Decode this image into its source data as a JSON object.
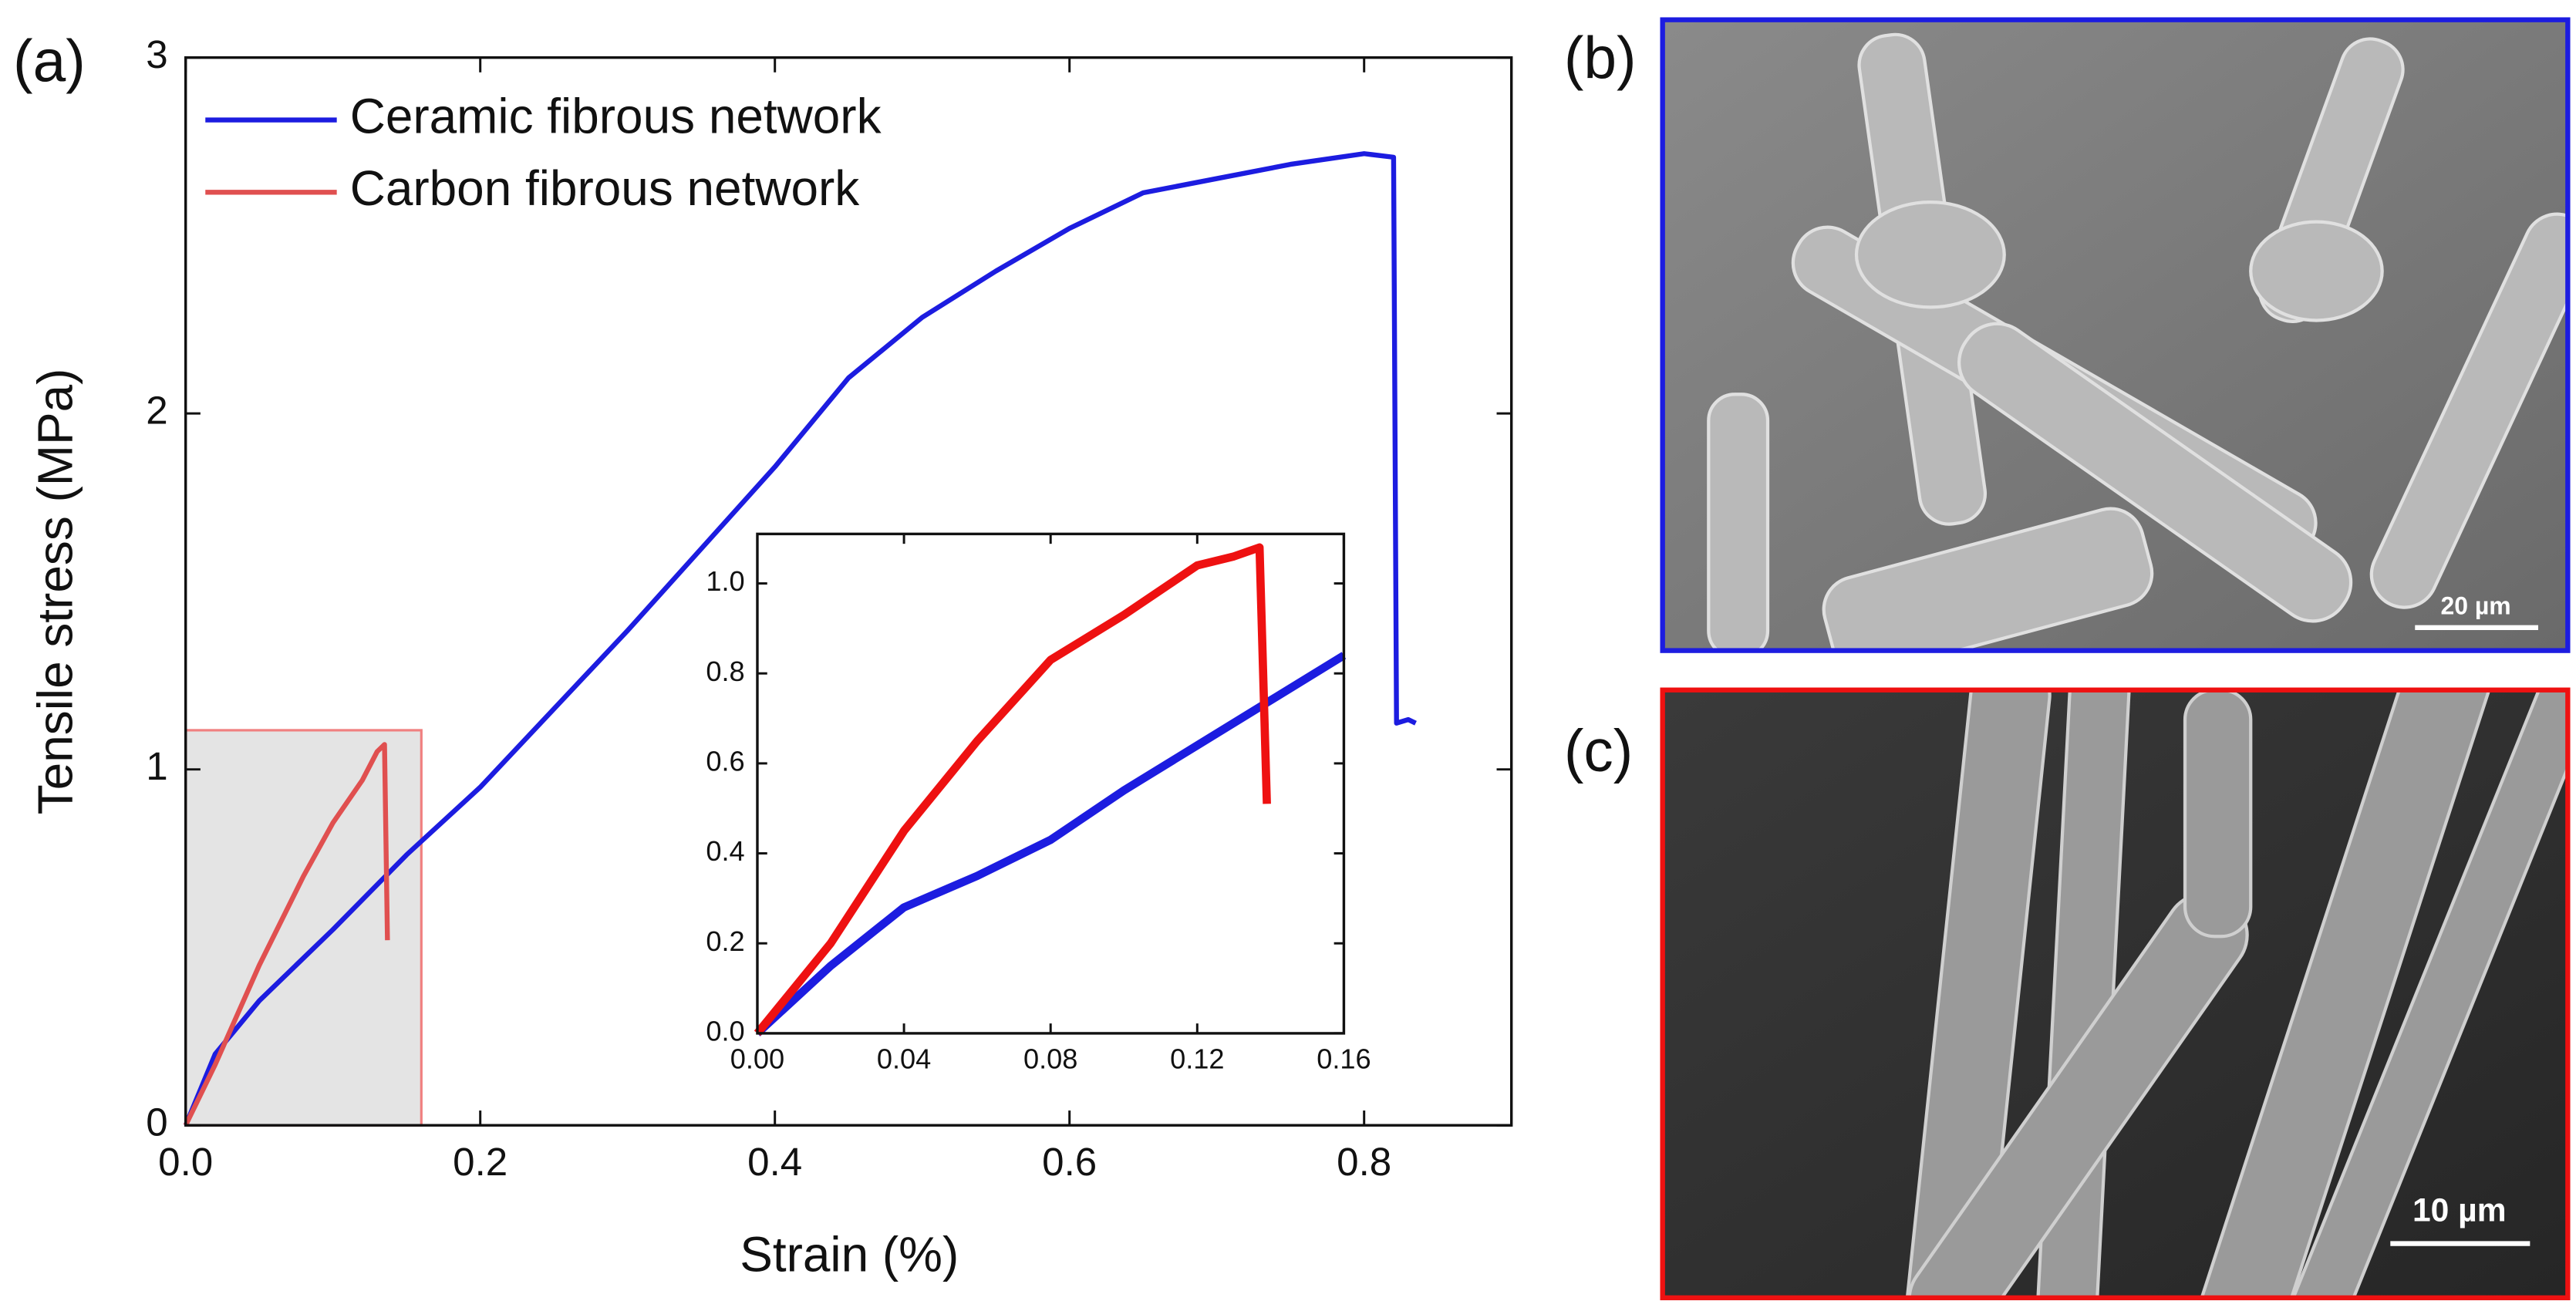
{
  "chart_data": [
    {
      "type": "line",
      "panel_label": "(a)",
      "x_label": "Strain (%)",
      "y_label": "Tensile stress (MPa)",
      "xlim": [
        0,
        0.9
      ],
      "ylim": [
        0,
        3
      ],
      "xticks": [
        {
          "value": 0,
          "label": "0.0"
        },
        0.2,
        0.4,
        0.6,
        0.8
      ],
      "yticks": [
        0,
        1,
        2,
        3
      ],
      "legend": "upper left",
      "series": [
        {
          "name": "Ceramic fibrous network",
          "color": "#1c1ce0",
          "x": [
            0,
            0.02,
            0.05,
            0.1,
            0.15,
            0.2,
            0.3,
            0.4,
            0.45,
            0.5,
            0.55,
            0.6,
            0.65,
            0.7,
            0.75,
            0.8,
            0.82,
            0.822,
            0.83,
            0.835
          ],
          "values": [
            0,
            0.2,
            0.35,
            0.55,
            0.76,
            0.95,
            1.39,
            1.85,
            2.1,
            2.27,
            2.4,
            2.52,
            2.62,
            2.66,
            2.7,
            2.73,
            2.72,
            1.13,
            1.14,
            1.13
          ]
        },
        {
          "name": "Carbon fibrous network",
          "color": "#e05050",
          "x": [
            0,
            0.02,
            0.05,
            0.08,
            0.1,
            0.12,
            0.13,
            0.135,
            0.137
          ],
          "values": [
            0,
            0.17,
            0.45,
            0.7,
            0.85,
            0.97,
            1.05,
            1.07,
            0.52
          ]
        }
      ]
    },
    {
      "type": "line",
      "xlim": [
        0,
        0.16
      ],
      "ylim": [
        0,
        1.11
      ],
      "xticks": [
        {
          "value": 0,
          "label": "0.00"
        },
        {
          "value": 0.04,
          "label": "0.04"
        },
        {
          "value": 0.08,
          "label": "0.08"
        },
        {
          "value": 0.12,
          "label": "0.12"
        },
        {
          "value": 0.16,
          "label": "0.16"
        }
      ],
      "yticks": [
        {
          "value": 0,
          "label": "0.0"
        },
        {
          "value": 0.2,
          "label": "0.2"
        },
        {
          "value": 0.4,
          "label": "0.4"
        },
        {
          "value": 0.6,
          "label": "0.6"
        },
        {
          "value": 0.8,
          "label": "0.8"
        },
        {
          "value": 1,
          "label": "1.0"
        }
      ],
      "series": [
        {
          "color": "#1c1ce0",
          "x": [
            0,
            0.02,
            0.04,
            0.06,
            0.08,
            0.1,
            0.12,
            0.14,
            0.16
          ],
          "values": [
            0,
            0.15,
            0.28,
            0.35,
            0.43,
            0.54,
            0.64,
            0.74,
            0.84
          ]
        },
        {
          "color": "#ee1111",
          "x": [
            0,
            0.02,
            0.04,
            0.06,
            0.08,
            0.1,
            0.12,
            0.13,
            0.137,
            0.139
          ],
          "values": [
            0,
            0.2,
            0.45,
            0.65,
            0.83,
            0.93,
            1.04,
            1.06,
            1.08,
            0.51
          ]
        }
      ]
    }
  ],
  "panels": {
    "b": {
      "label": "(b)",
      "scale_bar": "20 µm"
    },
    "c": {
      "label": "(c)",
      "scale_bar": "10 µm"
    }
  }
}
